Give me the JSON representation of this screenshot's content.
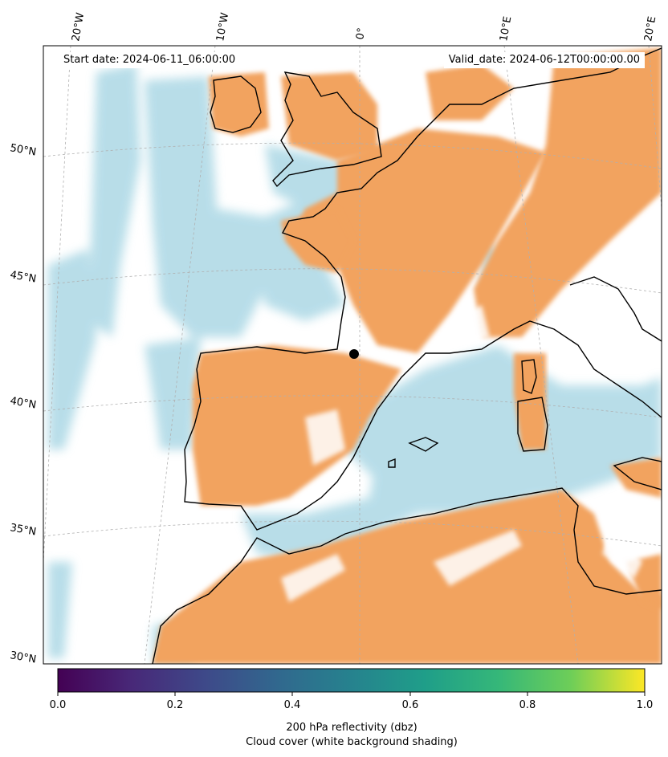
{
  "header": {
    "start_date": "Start date: 2024-06-11_06:00:00",
    "valid_date": "Valid_date: 2024-06-12T00:00:00.00"
  },
  "longitude_labels": [
    "20°W",
    "10°W",
    "0°",
    "10°E",
    "20°E"
  ],
  "latitude_labels": [
    "50°N",
    "45°N",
    "40°N",
    "35°N",
    "30°N"
  ],
  "colorbar": {
    "ticks": [
      "0.0",
      "0.2",
      "0.4",
      "0.6",
      "0.8",
      "1.0"
    ],
    "label_line1": "200 hPa reflectivity (dbz)",
    "label_line2": "Cloud cover (white background shading)",
    "colormap": "viridis",
    "range": [
      0.0,
      1.0
    ]
  },
  "colors": {
    "field_orange": "#f2a35e",
    "field_blue": "#acd8e5",
    "coastline": "#000000"
  }
}
